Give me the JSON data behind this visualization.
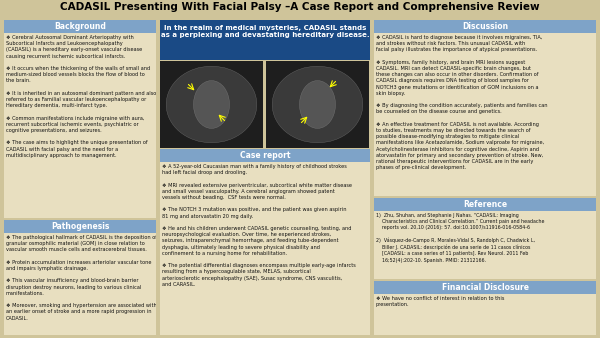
{
  "title": "CADASIL Presenting With Facial Palsy –A Case Report and Comprehensive Review",
  "bg_color": "#cfc49a",
  "title_color": "#000000",
  "title_fontsize": 7.5,
  "header_bg": "#7ea3c8",
  "header_text_color": "#ffffff",
  "header_fontsize": 5.5,
  "body_fontsize": 3.6,
  "body_color": "#111111",
  "panel_bg": "#e8dfc0",
  "quote_bg": "#1a4a85",
  "quote_color": "#ffffff",
  "quote_fontsize": 5.0,
  "ref_fontsize": 3.4,
  "col1_header1": "Background",
  "col1_text1": "❖ Cerebral Autosomal Dominant Arteriopathy with\nSubcortical Infarcts and Leukoencephalopathy\n(CADASIL) is a hereditary early-onset vascular disease\ncausing recurrent ischemic subcortical infarcts.\n\n❖ It occurs when the thickening of the walls of small and\nmedium-sized blood vessels blocks the flow of blood to\nthe brain.\n\n❖ It is inherited in an autosomal dominant pattern and also\nreferred to as Familial vascular leukoencephalopathy or\nHereditary dementia, multi-infarct type.\n\n❖ Common manifestations include migraine with aura,\nrecurrent subcortical ischemic events, psychiatric or\ncognitive presentations, and seizures.\n\n❖ The case aims to highlight the unique presentation of\nCADASIL with facial palsy and the need for a\nmultidisciplinary approach to management.",
  "col1_header2": "Pathogenesis",
  "col1_text2": "❖ The pathological hallmark of CADASIL is the deposition of\ngranular osmophilic material (GOM) in close relation to\nvascular smooth muscle cells and extracerebral tissues.\n\n❖ Protein accumulation increases arteriolar vascular tone\nand impairs lymphatic drainage.\n\n❖ This vascular insufficiency and blood-brain barrier\ndisruption destroy neurons, leading to various clinical\nmanifestations.\n\n❖ Moreover, smoking and hypertension are associated with\nan earlier onset of stroke and a more rapid progression in\nCADASIL.",
  "quote_text": "In the realm of medical mysteries, CADASIL stands\nas a perplexing and devastating hereditary disease.",
  "col2_header": "Case report",
  "col2_text": "❖ A 52-year-old Caucasian man with a family history of childhood strokes\nhad left facial droop and drooling.\n\n❖ MRI revealed extensive periventricular, subcortical white matter disease\nand small vessel vasculopathy. A cerebral angiogram showed patent\nvessels without beading.  CSF tests were normal.\n\n❖ The NOTCH 3 mutation was positive, and the patient was given aspirin\n81 mg and atorvastatin 20 mg daily.\n\n❖ He and his children underwent CADASIL genetic counseling, testing, and\nneuropsychological evaluation. Over time, he experienced strokes,\nseizures, intraparenchymal hemorrhage, and feeding tube-dependent\ndysphagia, ultimately leading to severe physical disability and\nconfinement to a nursing home for rehabilitation.\n\n❖ The potential differential diagnoses encompass multiple early-age infarcts\nresulting from a hypercoagulable state, MELAS, subcortical\narteriosclerotic encephalopathy (SAE), Susac syndrome, CNS vasculitis,\nand CARASIL.",
  "col3_header1": "Discussion",
  "col3_text1": "❖ CADASIL is hard to diagnose because it involves migraines, TIA,\nand strokes without risk factors. This unusual CADASIL with\nfacial palsy illustrates the importance of atypical presentations.\n\n❖ Symptoms, family history, and brain MRI lesions suggest\nCADASIL. MRI can detect CADASIL-specific brain changes, but\nthese changes can also occur in other disorders. Confirmation of\nCADASIL diagnosis requires DNA testing of blood samples for\nNOTCH3 gene mutations or identification of GOM inclusions on a\nskin biopsy.\n\n❖ By diagnosing the condition accurately, patients and families can\nbe counseled on the disease course and genetics.\n\n❖ An effective treatment for CADASIL is not available. According\nto studies, treatments may be directed towards the search of\npossible disease-modifying strategies to mitigate clinical\nmanifestations like Acetazolamide, Sodium valproate for migraine,\nAcetylcholinesterase inhibitors for cognitive decline, Aspirin and\natorvastatin for primary and secondary prevention of stroke. New,\nrational therapeutic interventions for CADASIL are in the early\nphases of pre-clinical development.",
  "col3_header2": "Reference",
  "col3_text2": "1)  Zhu, Shuhan, and Stephanie J Nahas. “CADASIL: Imaging\n    Characteristics and Clinical Correlation.” Current pain and headache\n    reports vol. 20,10 (2016): 57. doi:10.1007/s11916-016-0584-6\n\n2)  Vásquez-de-Campo R, Morales-Vidal S, Randolph C, Chadwick L,\n    Biller J. CADASIL: descripción de una serie de 11 casos clínicos\n    [CADASIL: a case series of 11 patients]. Rev Neurol. 2011 Feb\n    16;52(4):202-10. Spanish. PMID: 21312166.",
  "col3_header3": "Financial Disclosure",
  "col3_text3": "❖ We have no conflict of interest in relation to this\npresentation."
}
